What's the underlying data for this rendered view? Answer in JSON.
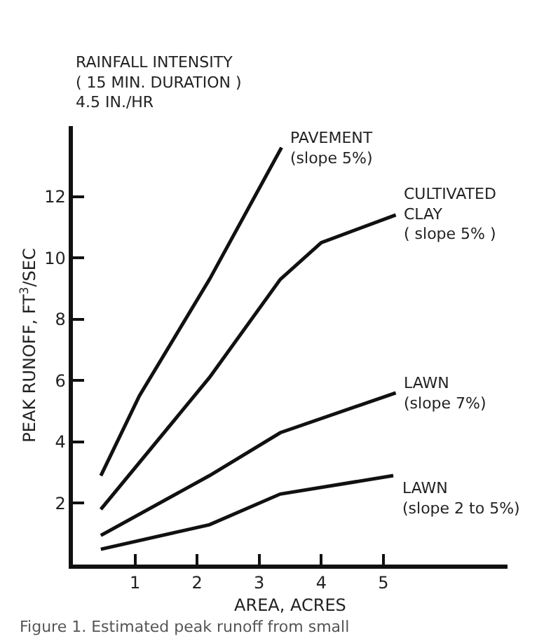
{
  "chart_data": {
    "type": "line",
    "title": "RAINFALL INTENSITY\n( 15 MIN. DURATION )",
    "subtitle": "4.5 IN./HR",
    "xlabel": "AREA, ACRES",
    "ylabel": "PEAK RUNOFF, FT$^{3}$/SEC",
    "xlim": [
      0,
      7
    ],
    "xticks": [
      1,
      2,
      3,
      4,
      5
    ],
    "ylim": [
      0,
      14.3
    ],
    "yticks": [
      2,
      4,
      6,
      8,
      10,
      12
    ],
    "legend": false,
    "marker": "none",
    "line_style": "solid",
    "series": [
      {
        "name": "PAVEMENT\n(slope 5%)",
        "color": "#111111",
        "x": [
          0.45,
          1.07,
          2.2,
          3.36
        ],
        "values": [
          2.9,
          5.5,
          9.3,
          13.6
        ]
      },
      {
        "name": "CULTIVATED\nCLAY\n( slope 5% )",
        "color": "#111111",
        "x": [
          0.45,
          2.2,
          3.34,
          4.0,
          5.2
        ],
        "values": [
          1.8,
          6.1,
          9.3,
          10.5,
          11.4
        ]
      },
      {
        "name": "LAWN\n(slope 7%)",
        "color": "#111111",
        "x": [
          0.45,
          2.2,
          3.34,
          5.2
        ],
        "values": [
          0.95,
          2.9,
          4.3,
          5.6
        ]
      },
      {
        "name": "LAWN\n(slope 2 to 5%)",
        "color": "#111111",
        "x": [
          0.45,
          2.2,
          3.34,
          5.16
        ],
        "values": [
          0.5,
          1.3,
          2.3,
          2.9
        ]
      }
    ],
    "annotations": [
      "Figure 1. Estimated peak runoff from small"
    ]
  }
}
